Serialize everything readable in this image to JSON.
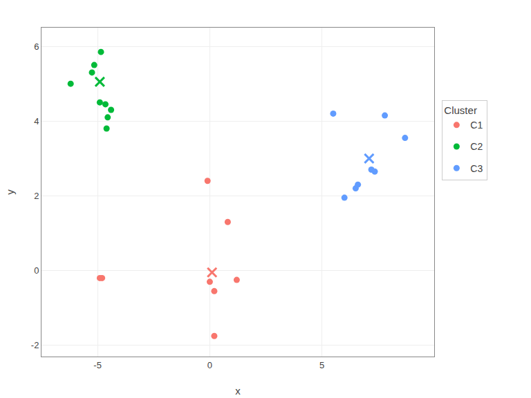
{
  "chart_data": {
    "type": "scatter",
    "xlabel": "x",
    "ylabel": "y",
    "legend_title": "Cluster",
    "series": [
      {
        "name": "C1",
        "color": "#F8766D",
        "x": [
          -0.1,
          0.8,
          -4.8,
          -4.9,
          0.0,
          1.2,
          0.2,
          0.2
        ],
        "y": [
          2.4,
          1.3,
          -0.2,
          -0.2,
          -0.3,
          -0.25,
          -0.55,
          -1.75
        ],
        "centroid": [
          0.1,
          -0.05
        ]
      },
      {
        "name": "C2",
        "color": "#00BA38",
        "x": [
          -6.2,
          -4.85,
          -5.15,
          -5.25,
          -4.9,
          -4.65,
          -4.55,
          -4.4,
          -4.6
        ],
        "y": [
          5.0,
          5.85,
          5.5,
          5.3,
          4.5,
          4.45,
          4.1,
          4.3,
          3.8
        ],
        "centroid": [
          -4.9,
          5.05
        ]
      },
      {
        "name": "C3",
        "color": "#619CFF",
        "x": [
          5.5,
          7.8,
          6.0,
          6.5,
          6.6,
          7.2,
          7.35,
          8.7
        ],
        "y": [
          4.2,
          4.15,
          1.95,
          2.2,
          2.3,
          2.7,
          2.65,
          3.55
        ],
        "centroid": [
          7.1,
          3.0
        ]
      }
    ],
    "xlim": [
      -7.5,
      10.0
    ],
    "ylim": [
      -2.3,
      6.5
    ],
    "xticks": [
      -5,
      0,
      5
    ],
    "yticks": [
      -2,
      0,
      2,
      4,
      6
    ],
    "grid": true,
    "legend": "right"
  }
}
